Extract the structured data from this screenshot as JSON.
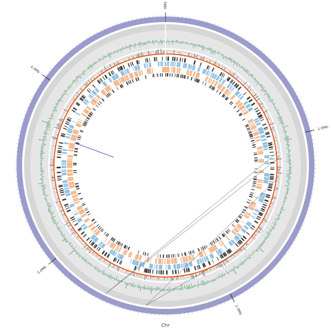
{
  "diagram": {
    "type": "circular-genome-map",
    "chromosome_label": "Chr",
    "tick_labels": [
      "0Mb",
      "1.0Mb",
      "2.0Mb",
      "3.0Mb",
      "4.0Mb"
    ],
    "tick_label_positions_mb": [
      0,
      1.0,
      2.0,
      3.0,
      4.0
    ],
    "genome_length_mb": 4.7,
    "colors": {
      "ideogram": "#9b9bcc",
      "gray_ring_outer": "#d6d6d6",
      "gray_ring_inner": "#e6e6e6",
      "gc_track": "#2e8b57",
      "skew_track": "#e05a1f",
      "dark_track": "#3a3a3a",
      "blue_track": "#8fc3e4",
      "orange_track": "#f6b98f",
      "indicator_line": "#3b4bc8",
      "links": "#555555"
    },
    "tracks": [
      "ideogram",
      "gc-content",
      "gc-skew",
      "features-forward-dark",
      "cds-forward",
      "cds-reverse",
      "features-reverse-dark"
    ]
  }
}
